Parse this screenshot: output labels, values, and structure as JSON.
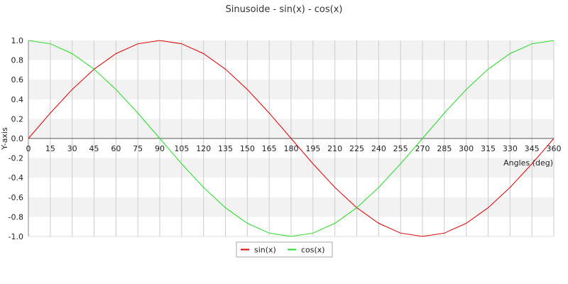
{
  "chart_data": {
    "type": "line",
    "title": "Sinusoide - sin(x) - cos(x)",
    "xlabel": "Angles (deg)",
    "ylabel": "Y-axis",
    "x": [
      0,
      15,
      30,
      45,
      60,
      75,
      90,
      105,
      120,
      135,
      150,
      165,
      180,
      195,
      210,
      225,
      240,
      255,
      270,
      285,
      300,
      315,
      330,
      345,
      360
    ],
    "x_tick_labels": [
      "0",
      "15",
      "30",
      "45",
      "60",
      "75",
      "90",
      "105",
      "120",
      "135",
      "150",
      "165",
      "180",
      "195",
      "210",
      "225",
      "240",
      "255",
      "270",
      "285",
      "300",
      "315",
      "330",
      "345",
      "360"
    ],
    "y_tick_values": [
      1.0,
      0.8,
      0.6,
      0.4,
      0.2,
      0.0,
      -0.2,
      -0.4,
      -0.6,
      -0.8,
      -1.0
    ],
    "y_tick_labels": [
      "1.0",
      "0.8",
      "0.6",
      "0.4",
      "0.2",
      "0.0",
      "-0.2",
      "-0.4",
      "-0.6",
      "-0.8",
      "-1.0"
    ],
    "xlim": [
      0,
      360
    ],
    "ylim": [
      -1.0,
      1.0
    ],
    "grid": true,
    "legend_position": "bottom-center",
    "series": [
      {
        "name": "sin(x)",
        "color": "#e00000",
        "values": [
          0,
          0.259,
          0.5,
          0.707,
          0.866,
          0.966,
          1.0,
          0.966,
          0.866,
          0.707,
          0.5,
          0.259,
          0,
          -0.259,
          -0.5,
          -0.707,
          -0.866,
          -0.966,
          -1.0,
          -0.966,
          -0.866,
          -0.707,
          -0.5,
          -0.259,
          0
        ]
      },
      {
        "name": "cos(x)",
        "color": "#22dd22",
        "values": [
          1.0,
          0.966,
          0.866,
          0.707,
          0.5,
          0.259,
          0,
          -0.259,
          -0.5,
          -0.707,
          -0.866,
          -0.966,
          -1.0,
          -0.966,
          -0.866,
          -0.707,
          -0.5,
          -0.259,
          0,
          0.259,
          0.5,
          0.707,
          0.866,
          0.966,
          1.0
        ]
      }
    ]
  }
}
